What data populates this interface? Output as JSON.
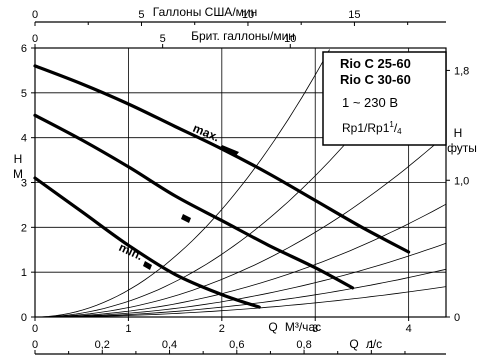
{
  "chart_data": {
    "type": "line",
    "title": "",
    "legend_box": {
      "line1": "Rio C 25-60",
      "line2": "Rio C 30-60",
      "line3": "1 ~ 230 В",
      "line4_base": "Rp1/Rp1",
      "line4_sup": "1",
      "line4_slash": "/",
      "line4_sub": "4"
    },
    "axes": {
      "top_us": {
        "label": "Галлоны США/мин",
        "ticks": [
          "0",
          "5",
          "10",
          "15"
        ],
        "values": [
          0,
          5,
          10,
          15
        ],
        "max": 19.3
      },
      "top_uk": {
        "label": "Брит. галлоны/мин",
        "ticks": [
          "0",
          "5",
          "10"
        ],
        "values": [
          0,
          5,
          10
        ],
        "max": 16.1
      },
      "bottom_m3h": {
        "label": "Q м³/час",
        "label_q": "Q",
        "label_unit": "М³/час",
        "ticks": [
          "0",
          "1",
          "2",
          "3",
          "4"
        ],
        "values": [
          0,
          1,
          2,
          3,
          4
        ],
        "max": 4.4
      },
      "bottom_ls": {
        "label": "Q л/с",
        "label_q": "Q",
        "label_unit": "л/с",
        "ticks": [
          "0",
          "0,2",
          "0,4",
          "0,6",
          "0,8",
          "1"
        ],
        "values": [
          0,
          0.2,
          0.4,
          0.6,
          0.8,
          1.0
        ],
        "max": 1.222
      },
      "left": {
        "label_h": "Н",
        "label_unit": "М",
        "ticks": [
          "0",
          "1",
          "2",
          "3",
          "4",
          "5",
          "6"
        ],
        "values": [
          0,
          1,
          2,
          3,
          4,
          5,
          6
        ],
        "ylim": [
          0,
          6
        ]
      },
      "right": {
        "label_h": "Н",
        "label_unit": "футы",
        "ticks": [
          "0",
          "1,0",
          "1,8"
        ],
        "values": [
          0,
          1.0,
          1.8
        ]
      }
    },
    "grid_x": [
      1,
      2,
      3,
      4
    ],
    "grid_y": [
      1,
      2,
      3,
      4,
      5
    ],
    "series": [
      {
        "label": "max.",
        "x": [
          0,
          0.5,
          1.0,
          1.5,
          2.0,
          2.5,
          3.0,
          3.5,
          4.0
        ],
        "y": [
          5.6,
          5.2,
          4.75,
          4.25,
          3.75,
          3.2,
          2.6,
          2.0,
          1.45
        ]
      },
      {
        "label": "",
        "x": [
          0,
          0.5,
          1.0,
          1.5,
          2.0,
          2.5,
          3.0,
          3.4
        ],
        "y": [
          4.5,
          3.95,
          3.35,
          2.7,
          2.15,
          1.6,
          1.1,
          0.65
        ]
      },
      {
        "label": "min.",
        "x": [
          0,
          0.5,
          1.0,
          1.5,
          2.0,
          2.4
        ],
        "y": [
          3.1,
          2.35,
          1.6,
          0.95,
          0.5,
          0.22
        ]
      }
    ],
    "system_curve_k": [
      0.6,
      0.35,
      0.21,
      0.13,
      0.085,
      0.055,
      0.035
    ]
  }
}
